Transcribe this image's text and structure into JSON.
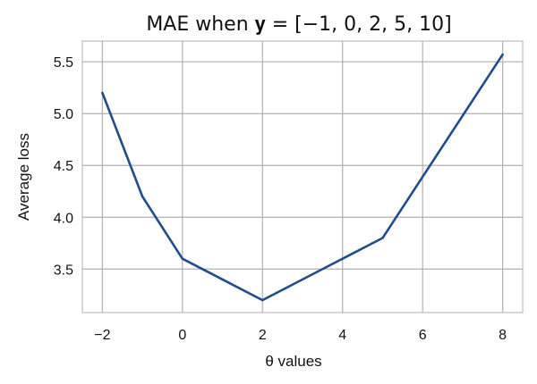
{
  "chart_data": {
    "type": "line",
    "title": "MAE when 𝐲 = [−1, 0, 2, 5, 10]",
    "xlabel": "θ values",
    "ylabel": "Average loss",
    "xlim": [
      -2.5,
      8.5
    ],
    "ylim": [
      3.08,
      5.7
    ],
    "xticks": [
      -2,
      0,
      2,
      4,
      6,
      8
    ],
    "xtick_labels": [
      "−2",
      "0",
      "2",
      "4",
      "6",
      "8"
    ],
    "yticks": [
      3.5,
      4.0,
      4.5,
      5.0,
      5.5
    ],
    "ytick_labels": [
      "3.5",
      "4.0",
      "4.5",
      "5.0",
      "5.5"
    ],
    "grid": true,
    "legend": false,
    "color": "#1f4e8c",
    "series": [
      {
        "x": [
          -2,
          -1,
          0,
          2,
          5,
          8
        ],
        "y": [
          5.2,
          4.2,
          3.6,
          3.2,
          3.8,
          5.57
        ]
      }
    ]
  }
}
